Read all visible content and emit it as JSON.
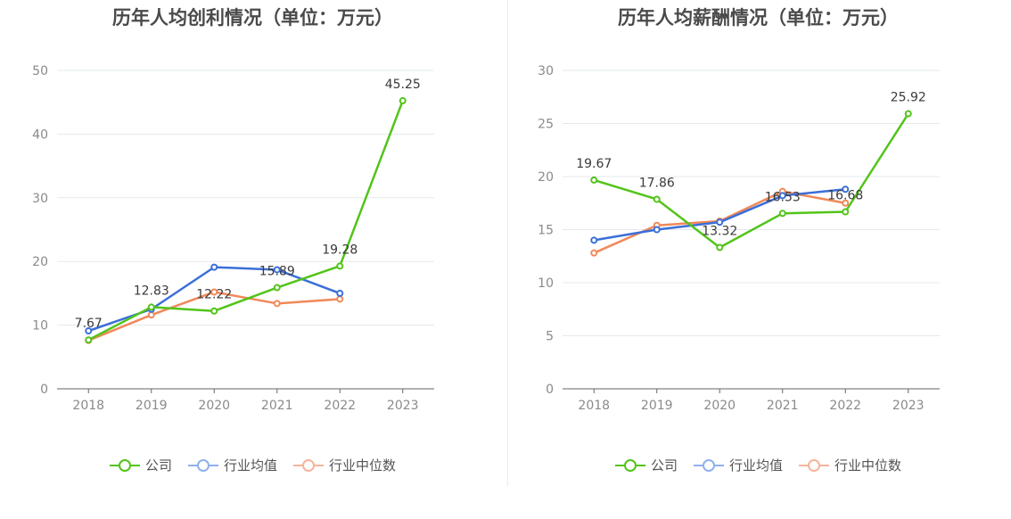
{
  "colors": {
    "company": "#52c41a",
    "industry_avg": "#3a6fd8",
    "industry_median": "#f08859",
    "legend_avg": "#8fb0ef",
    "legend_median": "#f6b49a",
    "grid": "#e6e8ee",
    "axis": "#666666"
  },
  "legend": [
    "公司",
    "行业均值",
    "行业中位数"
  ],
  "chart_data": [
    {
      "type": "line",
      "title": "历年人均创利情况（单位：万元）",
      "categories": [
        "2018",
        "2019",
        "2020",
        "2021",
        "2022",
        "2023"
      ],
      "ylim": [
        0,
        50
      ],
      "yticks": [
        0,
        10,
        20,
        30,
        40,
        50
      ],
      "grid": true,
      "legend_position": "bottom",
      "series": [
        {
          "name": "公司",
          "values": [
            7.67,
            12.83,
            12.22,
            15.89,
            19.28,
            45.25
          ],
          "labels": [
            "7.67",
            "12.83",
            "12.22",
            "15.89",
            "19.28",
            "45.25"
          ]
        },
        {
          "name": "行业均值",
          "values": [
            9.1,
            12.5,
            19.1,
            18.7,
            15.0,
            null
          ]
        },
        {
          "name": "行业中位数",
          "values": [
            7.6,
            11.6,
            15.2,
            13.4,
            14.1,
            null
          ]
        }
      ]
    },
    {
      "type": "line",
      "title": "历年人均薪酬情况（单位：万元）",
      "categories": [
        "2018",
        "2019",
        "2020",
        "2021",
        "2022",
        "2023"
      ],
      "ylim": [
        0,
        30
      ],
      "yticks": [
        0,
        5,
        10,
        15,
        20,
        25,
        30
      ],
      "grid": true,
      "legend_position": "bottom",
      "series": [
        {
          "name": "公司",
          "values": [
            19.67,
            17.86,
            13.32,
            16.53,
            16.68,
            25.92
          ],
          "labels": [
            "19.67",
            "17.86",
            "13.32",
            "16.53",
            "16.68",
            "25.92"
          ]
        },
        {
          "name": "行业均值",
          "values": [
            14.0,
            15.0,
            15.7,
            18.2,
            18.8,
            null
          ]
        },
        {
          "name": "行业中位数",
          "values": [
            12.8,
            15.4,
            15.8,
            18.6,
            17.5,
            null
          ]
        }
      ]
    }
  ]
}
